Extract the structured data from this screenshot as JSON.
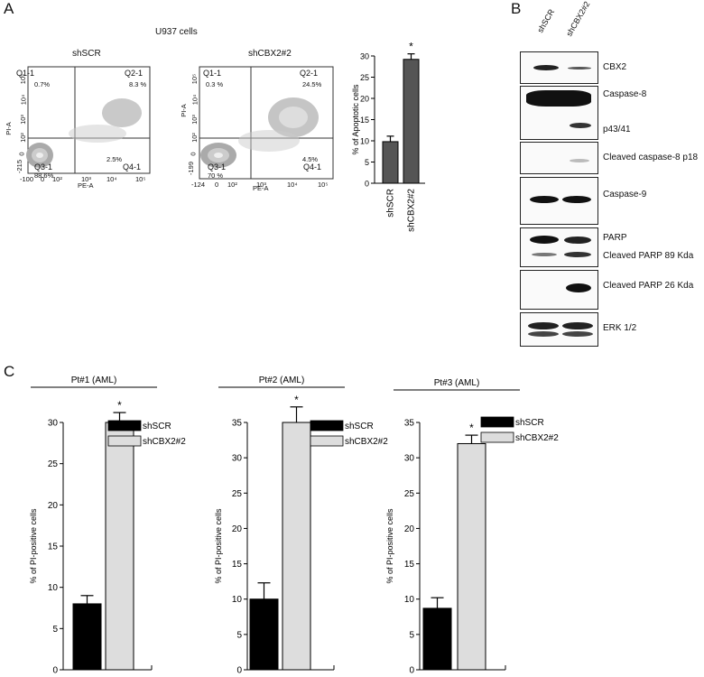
{
  "panels": {
    "a": "A",
    "b": "B",
    "c": "C"
  },
  "panel_a": {
    "title": "U937 cells",
    "flow_plots": [
      {
        "condition": "shSCR",
        "q1": "Q1-1",
        "q1_pct": "0.7%",
        "q2": "Q2-1",
        "q2_pct": "8.3 %",
        "q3": "Q3-1",
        "q3_pct": "88.6%",
        "q4": "Q4-1",
        "q4_pct": "2.5%",
        "y_ticks": [
          "10⁵",
          "10⁴",
          "10³",
          "10²",
          "0",
          "-215"
        ],
        "x_ticks": [
          "-100",
          "0",
          "10²",
          "10³",
          "10⁴",
          "10⁵"
        ],
        "ylabel": "PI-A",
        "xlabel": "PE-A"
      },
      {
        "condition": "shCBX2#2",
        "q1": "Q1-1",
        "q1_pct": "0.3 %",
        "q2": "Q2-1",
        "q2_pct": "24.5%",
        "q3": "Q3-1",
        "q3_pct": "70 %",
        "q4": "Q4-1",
        "q4_pct": "4.5%",
        "y_ticks": [
          "10⁵",
          "10⁴",
          "10³",
          "10²",
          "0",
          "-199"
        ],
        "x_ticks": [
          "-124",
          "0",
          "10²",
          "10³",
          "10⁴",
          "10⁵"
        ],
        "ylabel": "PI-A",
        "xlabel": "PE-A"
      }
    ]
  },
  "panel_b": {
    "lanes": [
      "shSCR",
      "shCBX2#2"
    ],
    "blots": [
      {
        "labels": [
          "CBX2"
        ]
      },
      {
        "labels": [
          "Caspase-8",
          "p43/41"
        ]
      },
      {
        "labels": [
          "Cleaved caspase-8 p18"
        ]
      },
      {
        "labels": [
          "Caspase-9"
        ]
      },
      {
        "labels": [
          "PARP",
          "Cleaved PARP 89 Kda"
        ]
      },
      {
        "labels": [
          "Cleaved PARP 26 Kda"
        ]
      },
      {
        "labels": [
          "ERK 1/2"
        ]
      }
    ]
  },
  "chart_data": [
    {
      "type": "bar",
      "panel": "A",
      "categories": [
        "shSCR",
        "shCBX2#2"
      ],
      "values": [
        9.8,
        29.2
      ],
      "errors": [
        1.3,
        1.3
      ],
      "ylabel": "% of Apoptotic cells",
      "ylim": [
        0,
        30
      ],
      "yticks": [
        0,
        5,
        10,
        15,
        20,
        25,
        30
      ],
      "significance": [
        "",
        "*"
      ],
      "colors": [
        "#555555",
        "#555555"
      ]
    },
    {
      "type": "bar",
      "panel": "C",
      "title": "Pt#1 (AML)",
      "categories": [
        "shSCR",
        "shCBX2#2"
      ],
      "values": [
        8,
        30
      ],
      "errors": [
        1,
        1.2
      ],
      "ylabel": "% of PI-positive cells",
      "ylim": [
        0,
        30
      ],
      "yticks": [
        0,
        5,
        10,
        15,
        20,
        25,
        30
      ],
      "significance": [
        "",
        "*"
      ],
      "colors": [
        "#000000",
        "#dddddd"
      ],
      "legend": [
        "shSCR",
        "shCBX2#2"
      ]
    },
    {
      "type": "bar",
      "panel": "C",
      "title": "Pt#2 (AML)",
      "categories": [
        "shSCR",
        "shCBX2#2"
      ],
      "values": [
        10,
        35
      ],
      "errors": [
        2.3,
        2.2
      ],
      "ylabel": "% of PI-positive cells",
      "ylim": [
        0,
        35
      ],
      "yticks": [
        0,
        5,
        10,
        15,
        20,
        25,
        30,
        35
      ],
      "significance": [
        "",
        "*"
      ],
      "colors": [
        "#000000",
        "#dddddd"
      ],
      "legend": [
        "shSCR",
        "shCBX2#2"
      ]
    },
    {
      "type": "bar",
      "panel": "C",
      "title": "Pt#3 (AML)",
      "categories": [
        "shSCR",
        "shCBX2#2"
      ],
      "values": [
        8.7,
        32
      ],
      "errors": [
        1.5,
        1.2
      ],
      "ylabel": "% of PI-positive cells",
      "ylim": [
        0,
        35
      ],
      "yticks": [
        0,
        5,
        10,
        15,
        20,
        25,
        30,
        35
      ],
      "significance": [
        "",
        "*"
      ],
      "colors": [
        "#000000",
        "#dddddd"
      ],
      "legend": [
        "shSCR",
        "shCBX2#2"
      ]
    }
  ]
}
